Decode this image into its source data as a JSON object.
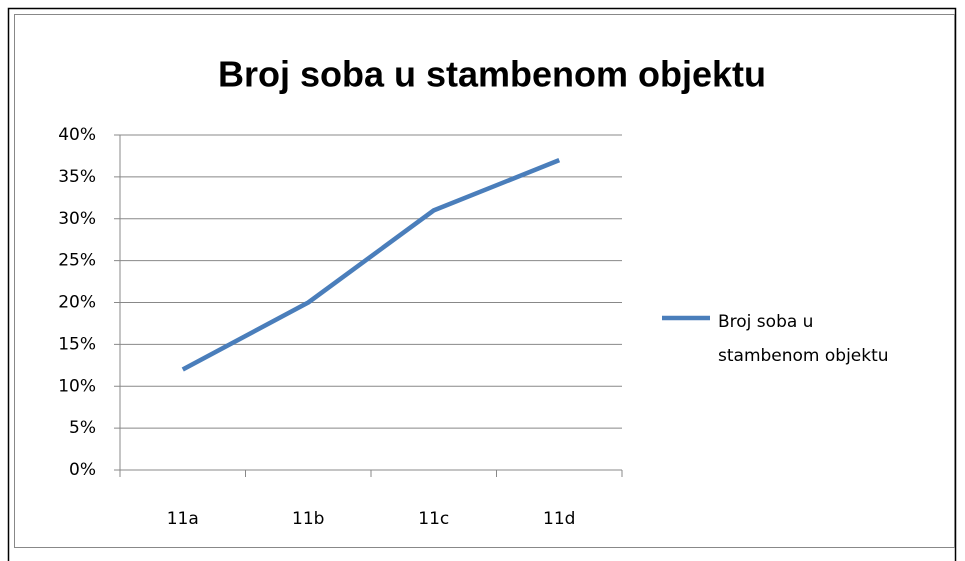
{
  "chart_data": {
    "type": "line",
    "title": "Broj soba u stambenom objektu",
    "categories": [
      "11a",
      "11b",
      "11c",
      "11d"
    ],
    "series": [
      {
        "name": "Broj soba u stambenom objektu",
        "color": "#4a7ebb",
        "values": [
          12,
          20,
          31,
          37
        ]
      }
    ],
    "ylim": [
      0,
      40
    ],
    "yticks": [
      {
        "value": 0,
        "label": "0%"
      },
      {
        "value": 5,
        "label": "5%"
      },
      {
        "value": 10,
        "label": "10%"
      },
      {
        "value": 15,
        "label": "15%"
      },
      {
        "value": 20,
        "label": "20%"
      },
      {
        "value": 25,
        "label": "25%"
      },
      {
        "value": 30,
        "label": "30%"
      },
      {
        "value": 35,
        "label": "35%"
      },
      {
        "value": 40,
        "label": "40%"
      }
    ],
    "grid": true,
    "legend": "right"
  }
}
